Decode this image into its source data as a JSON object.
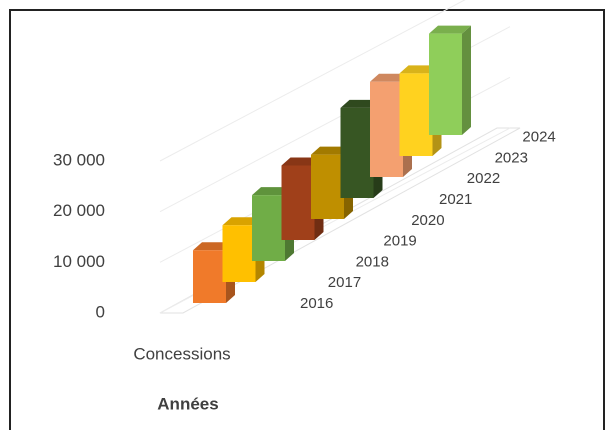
{
  "chart_data": {
    "type": "bar3d",
    "series_name": "Concessions",
    "axis_title": "Années",
    "categories": [
      "2016",
      "2017",
      "2018",
      "2019",
      "2020",
      "2021",
      "2022",
      "2023",
      "2024"
    ],
    "values": [
      10400,
      11200,
      13000,
      14700,
      12700,
      17800,
      18800,
      16300,
      20000
    ],
    "colors": [
      "#f07a2a",
      "#ffc000",
      "#70ad47",
      "#a0401a",
      "#bf8f00",
      "#375623",
      "#f4a070",
      "#ffd21f",
      "#8fce5a"
    ],
    "ylim": [
      0,
      30000
    ],
    "yticks": [
      0,
      {
        "value": 10000,
        "label": "10 000"
      },
      {
        "value": 20000,
        "label": "20 000"
      },
      {
        "value": 30000,
        "label": "30 000"
      }
    ],
    "grid": true
  }
}
